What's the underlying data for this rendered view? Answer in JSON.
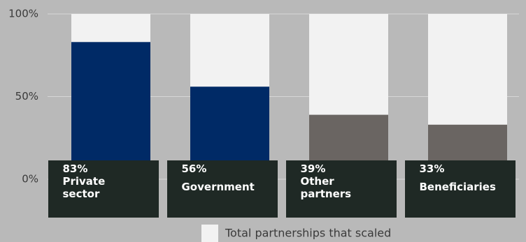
{
  "chart_data": {
    "type": "bar",
    "categories": [
      "Private sector",
      "Government",
      "Other partners",
      "Beneficiaries"
    ],
    "values": [
      83,
      56,
      39,
      33
    ],
    "value_labels": [
      "83%",
      "56%",
      "39%",
      "33%"
    ],
    "colors": [
      "#002a66",
      "#002a66",
      "#6a6562",
      "#6a6562"
    ],
    "series": [
      {
        "name": "Total partnerships that scaled",
        "color": "#f2f2f2",
        "values": [
          100,
          100,
          100,
          100
        ]
      }
    ],
    "ylim": [
      0,
      100
    ],
    "yticks": [
      {
        "value": 0,
        "label": "0%"
      },
      {
        "value": 50,
        "label": "50%"
      },
      {
        "value": 100,
        "label": "100%"
      }
    ],
    "grid": true
  }
}
